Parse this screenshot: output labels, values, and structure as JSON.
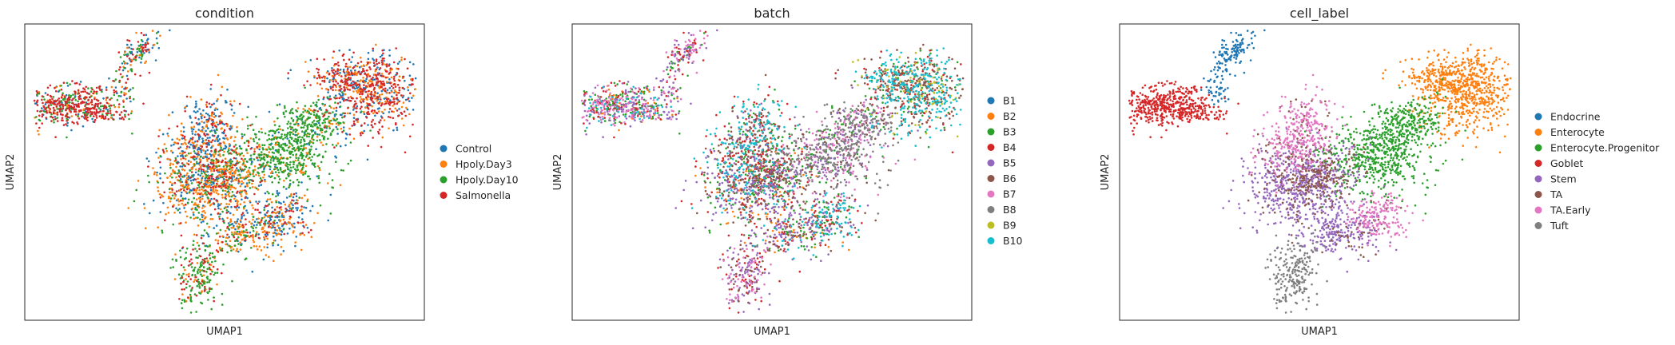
{
  "chart_data": [
    {
      "type": "scatter",
      "title": "condition",
      "xlabel": "UMAP1",
      "ylabel": "UMAP2",
      "grid": false,
      "legend": "right",
      "series": [
        {
          "name": "Control",
          "color": "#1f77b4"
        },
        {
          "name": "Hpoly.Day3",
          "color": "#ff7f0e"
        },
        {
          "name": "Hpoly.Day10",
          "color": "#2ca02c"
        },
        {
          "name": "Salmonella",
          "color": "#d62728"
        }
      ]
    },
    {
      "type": "scatter",
      "title": "batch",
      "xlabel": "UMAP1",
      "ylabel": "UMAP2",
      "grid": false,
      "legend": "right",
      "series": [
        {
          "name": "B1",
          "color": "#1f77b4"
        },
        {
          "name": "B2",
          "color": "#ff7f0e"
        },
        {
          "name": "B3",
          "color": "#2ca02c"
        },
        {
          "name": "B4",
          "color": "#d62728"
        },
        {
          "name": "B5",
          "color": "#9467bd"
        },
        {
          "name": "B6",
          "color": "#8c564b"
        },
        {
          "name": "B7",
          "color": "#e377c2"
        },
        {
          "name": "B8",
          "color": "#7f7f7f"
        },
        {
          "name": "B9",
          "color": "#bcbd22"
        },
        {
          "name": "B10",
          "color": "#17becf"
        }
      ]
    },
    {
      "type": "scatter",
      "title": "cell_label",
      "xlabel": "UMAP1",
      "ylabel": "UMAP2",
      "grid": false,
      "legend": "right",
      "series": [
        {
          "name": "Endocrine",
          "color": "#1f77b4"
        },
        {
          "name": "Enterocyte",
          "color": "#ff7f0e"
        },
        {
          "name": "Enterocyte.Progenitor",
          "color": "#2ca02c"
        },
        {
          "name": "Goblet",
          "color": "#d62728"
        },
        {
          "name": "Stem",
          "color": "#9467bd"
        },
        {
          "name": "TA",
          "color": "#8c564b"
        },
        {
          "name": "TA.Early",
          "color": "#e377c2"
        },
        {
          "name": "Tuft",
          "color": "#7f7f7f"
        }
      ]
    }
  ]
}
